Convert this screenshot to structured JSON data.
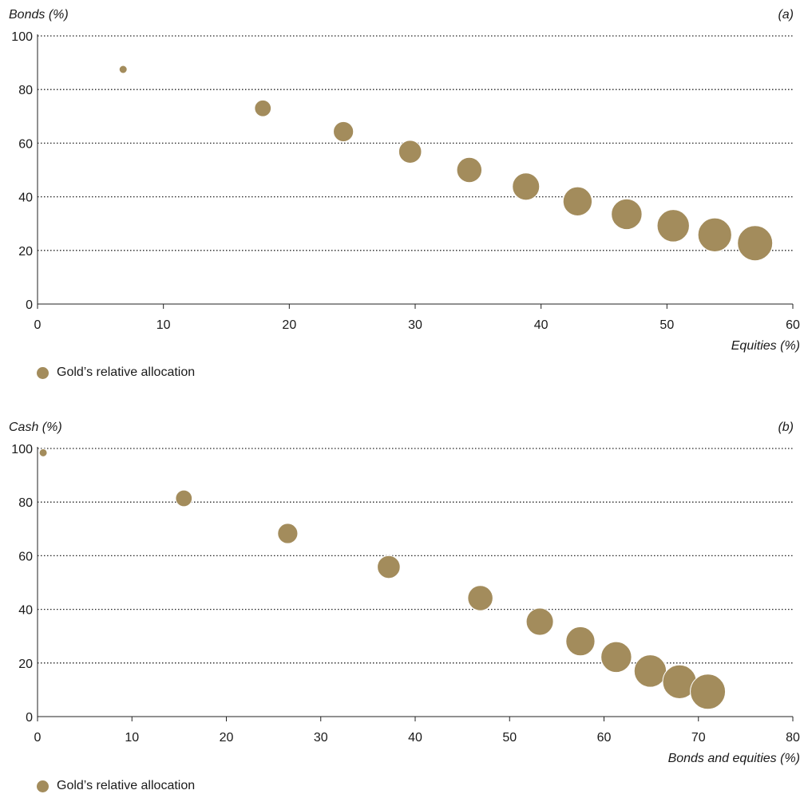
{
  "colors": {
    "bubble": "#A38C5C",
    "grid": "#222222",
    "axis": "#222222",
    "text": "#1a1a1a"
  },
  "chart_data": [
    {
      "type": "scatter",
      "panel_label": "(a)",
      "ylabel": "Bonds (%)",
      "xlabel": "Equities (%)",
      "xlim": [
        0,
        60
      ],
      "ylim": [
        0,
        100
      ],
      "xticks": [
        0,
        10,
        20,
        30,
        40,
        50,
        60
      ],
      "yticks": [
        0,
        20,
        40,
        60,
        80,
        100
      ],
      "grid": "horizontal dotted",
      "legend": "bottom-left",
      "series": [
        {
          "name": "Gold’s relative allocation",
          "x": [
            6.8,
            17.9,
            24.3,
            29.6,
            34.3,
            38.8,
            42.9,
            46.8,
            50.5,
            53.8,
            57.0
          ],
          "y": [
            87.5,
            73.0,
            64.3,
            56.8,
            50.0,
            43.8,
            38.3,
            33.5,
            29.2,
            25.8,
            22.7
          ],
          "size": [
            1,
            2,
            3,
            4,
            5,
            6,
            7,
            8,
            9,
            10,
            11
          ]
        }
      ]
    },
    {
      "type": "scatter",
      "panel_label": "(b)",
      "ylabel": "Cash (%)",
      "xlabel": "Bonds and equities (%)",
      "xlim": [
        0,
        80
      ],
      "ylim": [
        0,
        100
      ],
      "xticks": [
        0,
        10,
        20,
        30,
        40,
        50,
        60,
        70,
        80
      ],
      "yticks": [
        0,
        20,
        40,
        60,
        80,
        100
      ],
      "grid": "horizontal dotted",
      "legend": "bottom-left",
      "series": [
        {
          "name": "Gold’s relative allocation",
          "x": [
            0.6,
            15.5,
            26.5,
            37.2,
            46.9,
            53.2,
            57.5,
            61.3,
            64.9,
            68.0,
            71.0
          ],
          "y": [
            98.4,
            81.4,
            68.3,
            55.8,
            44.2,
            35.4,
            28.1,
            22.2,
            17.0,
            13.0,
            9.3
          ],
          "size": [
            1,
            2,
            3,
            4,
            5,
            6,
            7,
            8,
            9,
            10,
            11
          ]
        }
      ]
    }
  ]
}
